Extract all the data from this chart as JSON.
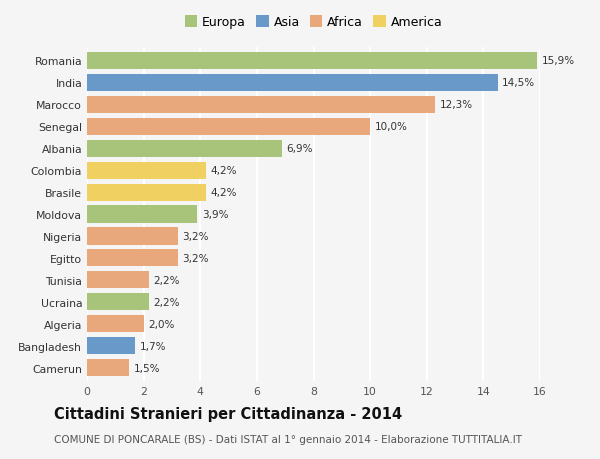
{
  "countries": [
    "Romania",
    "India",
    "Marocco",
    "Senegal",
    "Albania",
    "Colombia",
    "Brasile",
    "Moldova",
    "Nigeria",
    "Egitto",
    "Tunisia",
    "Ucraina",
    "Algeria",
    "Bangladesh",
    "Camerun"
  ],
  "values": [
    15.9,
    14.5,
    12.3,
    10.0,
    6.9,
    4.2,
    4.2,
    3.9,
    3.2,
    3.2,
    2.2,
    2.2,
    2.0,
    1.7,
    1.5
  ],
  "labels": [
    "15,9%",
    "14,5%",
    "12,3%",
    "10,0%",
    "6,9%",
    "4,2%",
    "4,2%",
    "3,9%",
    "3,2%",
    "3,2%",
    "2,2%",
    "2,2%",
    "2,0%",
    "1,7%",
    "1,5%"
  ],
  "continents": [
    "Europa",
    "Asia",
    "Africa",
    "Africa",
    "Europa",
    "America",
    "America",
    "Europa",
    "Africa",
    "Africa",
    "Africa",
    "Europa",
    "Africa",
    "Asia",
    "Africa"
  ],
  "continent_colors": {
    "Europa": "#a8c47a",
    "Asia": "#6899c8",
    "Africa": "#e8a87c",
    "America": "#f0d060"
  },
  "legend_order": [
    "Europa",
    "Asia",
    "Africa",
    "America"
  ],
  "title": "Cittadini Stranieri per Cittadinanza - 2014",
  "subtitle": "COMUNE DI PONCARALE (BS) - Dati ISTAT al 1° gennaio 2014 - Elaborazione TUTTITALIA.IT",
  "xlim": [
    0,
    16
  ],
  "xticks": [
    0,
    2,
    4,
    6,
    8,
    10,
    12,
    14,
    16
  ],
  "background_color": "#f5f5f5",
  "grid_color": "#ffffff",
  "bar_height": 0.78,
  "label_fontsize": 7.5,
  "title_fontsize": 10.5,
  "subtitle_fontsize": 7.5,
  "tick_fontsize": 7.8,
  "legend_fontsize": 9.0
}
